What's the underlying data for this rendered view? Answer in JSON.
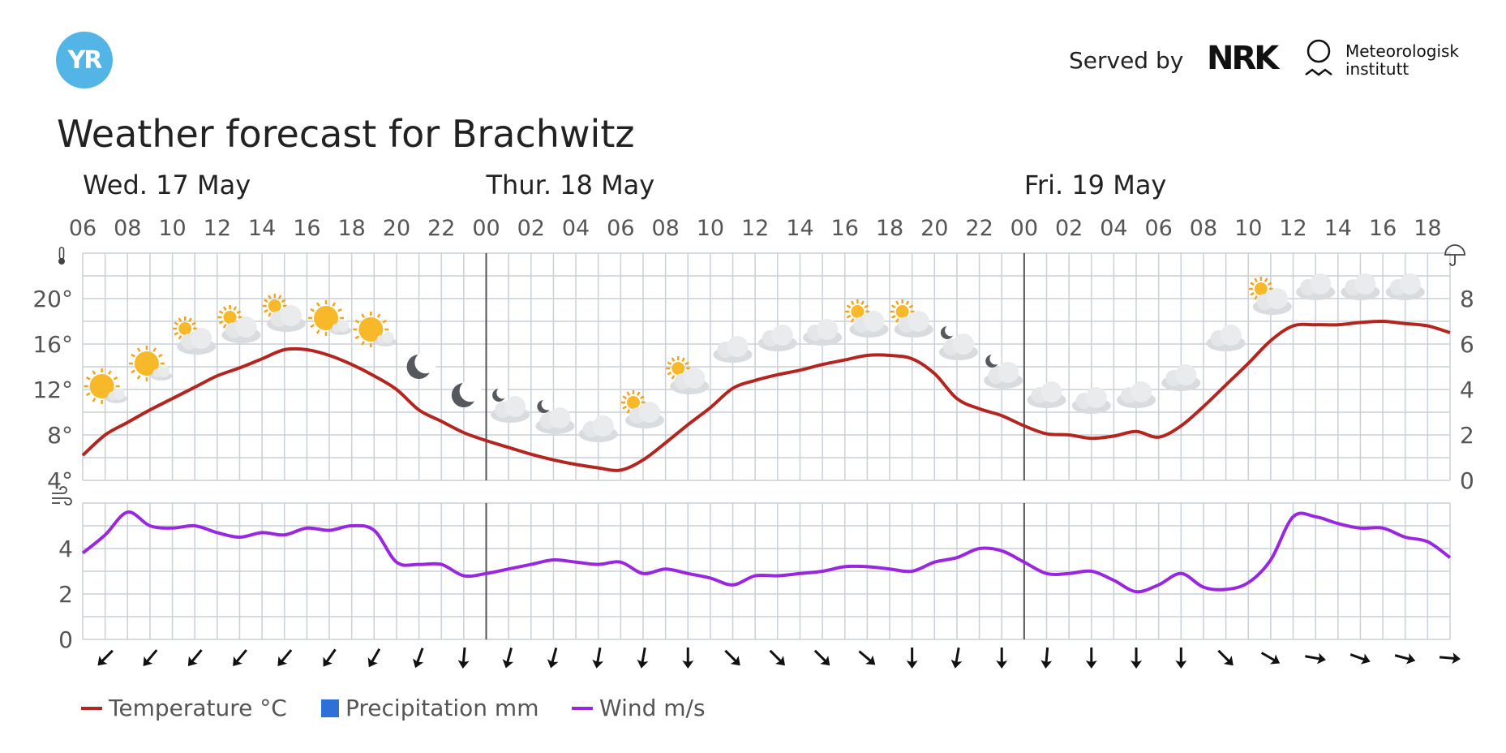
{
  "header": {
    "logo_text": "YR",
    "served_by": "Served by",
    "nrk_logo": "NRK",
    "met_name_line1": "Meteorologisk",
    "met_name_line2": "institutt"
  },
  "title": "Weather forecast for Brachwitz",
  "legend": {
    "temperature": "Temperature °C",
    "precipitation": "Precipitation mm",
    "wind": "Wind m/s"
  },
  "colors": {
    "temperature": "#b3251e",
    "precipitation": "#2f6fd8",
    "wind": "#9a27e0",
    "grid": "#c9d0d8",
    "day_divider": "#555555",
    "logo": "#52b5e5"
  },
  "chart_data": {
    "type": "line",
    "x_unit": "hour",
    "days": [
      {
        "label": "Wed. 17 May",
        "start_hour": 6
      },
      {
        "label": "Thur. 18 May",
        "start_hour": 24
      },
      {
        "label": "Fri. 19 May",
        "start_hour": 48
      }
    ],
    "x_tick_labels": [
      "06",
      "08",
      "10",
      "12",
      "14",
      "16",
      "18",
      "20",
      "22",
      "00",
      "02",
      "04",
      "06",
      "08",
      "10",
      "12",
      "14",
      "16",
      "18",
      "20",
      "22",
      "00",
      "02",
      "04",
      "06",
      "08",
      "10",
      "12",
      "14",
      "16",
      "18"
    ],
    "x_range_hours": [
      6,
      67
    ],
    "temperature": {
      "name": "Temperature °C",
      "ylim": [
        4,
        24
      ],
      "y_ticks": [
        "4°",
        "8°",
        "12°",
        "16°",
        "20°"
      ],
      "x": [
        6,
        7,
        8,
        9,
        10,
        11,
        12,
        13,
        14,
        15,
        16,
        17,
        18,
        19,
        20,
        21,
        22,
        23,
        24,
        25,
        26,
        27,
        28,
        29,
        30,
        31,
        32,
        33,
        34,
        35,
        36,
        37,
        38,
        39,
        40,
        41,
        42,
        43,
        44,
        45,
        46,
        47,
        48,
        49,
        50,
        51,
        52,
        53,
        54,
        55,
        56,
        57,
        58,
        59,
        60,
        61,
        62,
        63,
        64,
        65,
        66,
        67
      ],
      "values": [
        6.2,
        8.0,
        9.1,
        10.2,
        11.2,
        12.2,
        13.2,
        13.9,
        14.7,
        15.5,
        15.5,
        15.0,
        14.2,
        13.2,
        12.0,
        10.2,
        9.2,
        8.2,
        7.5,
        6.9,
        6.3,
        5.8,
        5.4,
        5.1,
        4.9,
        5.8,
        7.3,
        8.9,
        10.4,
        12.1,
        12.8,
        13.3,
        13.7,
        14.2,
        14.6,
        15.0,
        15.0,
        14.7,
        13.4,
        11.2,
        10.3,
        9.7,
        8.8,
        8.1,
        8.0,
        7.7,
        7.9,
        8.3,
        7.8,
        8.8,
        10.5,
        12.4,
        14.3,
        16.3,
        17.6,
        17.7,
        17.7,
        17.9,
        18.0,
        17.8,
        17.6,
        17.0
      ]
    },
    "precipitation": {
      "name": "Precipitation mm",
      "ylim": [
        0,
        10
      ],
      "y_ticks": [
        "0",
        "2",
        "4",
        "6",
        "8"
      ]
    },
    "wind": {
      "name": "Wind m/s",
      "ylim": [
        0,
        6
      ],
      "y_ticks": [
        "0",
        "2",
        "4"
      ],
      "x": [
        6,
        7,
        8,
        9,
        10,
        11,
        12,
        13,
        14,
        15,
        16,
        17,
        18,
        19,
        20,
        21,
        22,
        23,
        24,
        25,
        26,
        27,
        28,
        29,
        30,
        31,
        32,
        33,
        34,
        35,
        36,
        37,
        38,
        39,
        40,
        41,
        42,
        43,
        44,
        45,
        46,
        47,
        48,
        49,
        50,
        51,
        52,
        53,
        54,
        55,
        56,
        57,
        58,
        59,
        60,
        61,
        62,
        63,
        64,
        65,
        66,
        67
      ],
      "values": [
        3.8,
        4.6,
        5.6,
        5.0,
        4.9,
        5.0,
        4.7,
        4.5,
        4.7,
        4.6,
        4.9,
        4.8,
        5.0,
        4.8,
        3.4,
        3.3,
        3.3,
        2.8,
        2.9,
        3.1,
        3.3,
        3.5,
        3.4,
        3.3,
        3.4,
        2.9,
        3.1,
        2.9,
        2.7,
        2.4,
        2.8,
        2.8,
        2.9,
        3.0,
        3.2,
        3.2,
        3.1,
        3.0,
        3.4,
        3.6,
        4.0,
        3.9,
        3.4,
        2.9,
        2.9,
        3.0,
        2.6,
        2.1,
        2.4,
        2.9,
        2.3,
        2.2,
        2.5,
        3.5,
        5.4,
        5.4,
        5.1,
        4.9,
        4.9,
        4.5,
        4.3,
        3.6
      ]
    },
    "weather_icons": {
      "x": [
        7,
        9,
        11,
        13,
        15,
        17,
        19,
        21,
        23,
        25,
        27,
        29,
        31,
        33,
        35,
        37,
        39,
        41,
        43,
        45,
        47,
        49,
        51,
        53,
        55,
        57,
        59,
        61,
        63,
        65
      ],
      "types": [
        "fair-day",
        "fair-day",
        "partlycloudy-day",
        "partlycloudy-day",
        "partlycloudy-day",
        "fair-day",
        "fair-day",
        "clearsky-night",
        "clearsky-night",
        "partlycloudy-night",
        "partlycloudy-night",
        "cloudy",
        "partlycloudy-day",
        "partlycloudy-day",
        "cloudy",
        "cloudy",
        "cloudy",
        "partlycloudy-day",
        "partlycloudy-day",
        "partlycloudy-night",
        "partlycloudy-night",
        "cloudy",
        "cloudy",
        "cloudy",
        "cloudy",
        "cloudy",
        "partlycloudy-day",
        "cloudy",
        "cloudy",
        "cloudy"
      ],
      "temps": [
        12,
        14,
        16.5,
        17.5,
        18.5,
        18,
        17,
        14,
        11.5,
        10.5,
        9.5,
        8.5,
        10,
        13,
        15.5,
        16.5,
        17,
        18,
        18,
        16,
        13.5,
        11.5,
        11,
        11.5,
        13,
        16.5,
        20,
        21,
        21,
        21
      ]
    },
    "wind_directions": {
      "x": [
        7,
        9,
        11,
        13,
        15,
        17,
        19,
        21,
        23,
        25,
        27,
        29,
        31,
        33,
        35,
        37,
        39,
        41,
        43,
        45,
        47,
        49,
        51,
        53,
        55,
        57,
        59,
        61,
        63,
        65,
        67
      ],
      "degrees_to": [
        135,
        130,
        130,
        130,
        130,
        125,
        120,
        110,
        95,
        105,
        105,
        100,
        100,
        90,
        45,
        45,
        45,
        40,
        90,
        100,
        90,
        95,
        90,
        90,
        90,
        45,
        30,
        10,
        20,
        15,
        5
      ]
    }
  }
}
